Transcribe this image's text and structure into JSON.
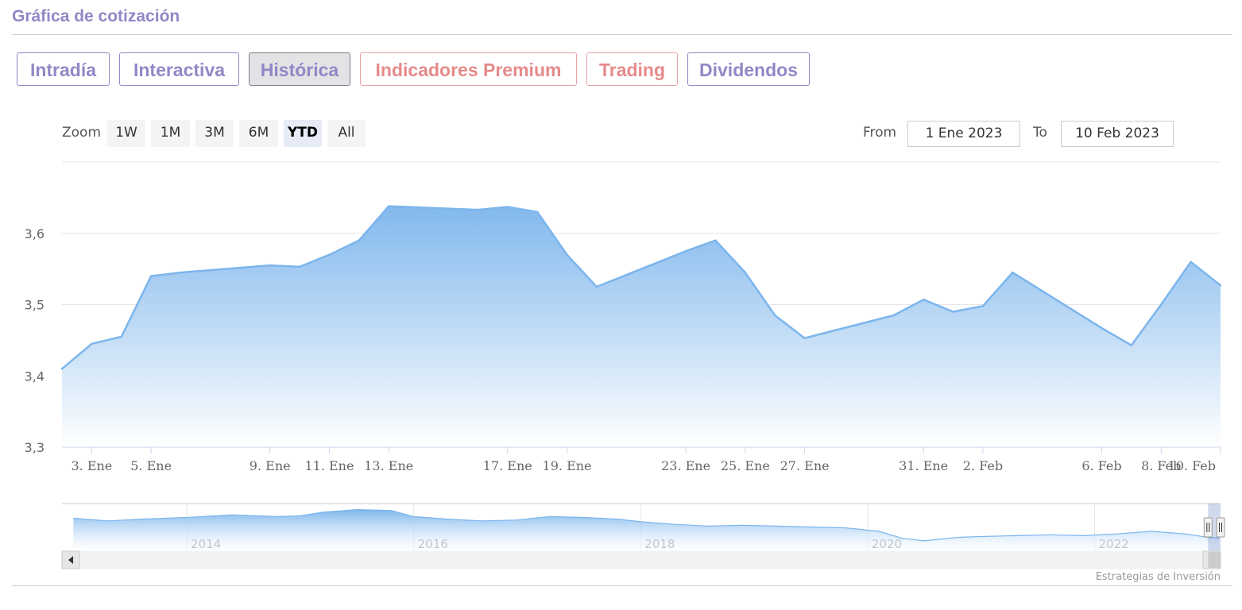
{
  "header": {
    "title": "Gráfica de cotización"
  },
  "tabs": [
    {
      "label": "Intradía"
    },
    {
      "label": "Interactiva"
    },
    {
      "label": "Histórica"
    },
    {
      "label": "Indicadores Premium"
    },
    {
      "label": "Trading"
    },
    {
      "label": "Dividendos"
    }
  ],
  "range_selector": {
    "zoom_label": "Zoom",
    "buttons": [
      "1W",
      "1M",
      "3M",
      "6M",
      "YTD",
      "All"
    ],
    "selected": "YTD",
    "from_label": "From",
    "from_value": "1 Ene 2023",
    "to_label": "To",
    "to_value": "10 Feb 2023"
  },
  "colors": {
    "accent": "#9088c6",
    "premium": "#e58a8a",
    "series_line": "#7cb5ec",
    "area_top": "#7cb5ec",
    "area_bottom": "#ffffff"
  },
  "chart_data": {
    "type": "area",
    "credits": "Estrategias de Inversión",
    "ylim": [
      3.3,
      3.7
    ],
    "y_ticks": [
      "3,3",
      "3,4",
      "3,5",
      "3,6"
    ],
    "x_tick_labels": [
      "3. Ene",
      "5. Ene",
      "9. Ene",
      "11. Ene",
      "13. Ene",
      "17. Ene",
      "19. Ene",
      "23. Ene",
      "25. Ene",
      "27. Ene",
      "31. Ene",
      "2. Feb",
      "6. Feb",
      "8. Feb",
      "10. Feb"
    ],
    "x_tick_dates": [
      "2023-01-03",
      "2023-01-05",
      "2023-01-09",
      "2023-01-11",
      "2023-01-13",
      "2023-01-17",
      "2023-01-19",
      "2023-01-23",
      "2023-01-25",
      "2023-01-27",
      "2023-01-31",
      "2023-02-02",
      "2023-02-06",
      "2023-02-08",
      "2023-02-10"
    ],
    "xlim": [
      "2023-01-02",
      "2023-02-10"
    ],
    "grid": true,
    "series": [
      {
        "x": [
          "2023-01-02",
          "2023-01-03",
          "2023-01-04",
          "2023-01-05",
          "2023-01-06",
          "2023-01-09",
          "2023-01-10",
          "2023-01-11",
          "2023-01-12",
          "2023-01-13",
          "2023-01-16",
          "2023-01-17",
          "2023-01-18",
          "2023-01-19",
          "2023-01-20",
          "2023-01-23",
          "2023-01-24",
          "2023-01-25",
          "2023-01-26",
          "2023-01-27",
          "2023-01-30",
          "2023-01-31",
          "2023-02-01",
          "2023-02-02",
          "2023-02-03",
          "2023-02-06",
          "2023-02-07",
          "2023-02-08",
          "2023-02-09",
          "2023-02-10"
        ],
        "values": [
          3.41,
          3.445,
          3.455,
          3.54,
          3.545,
          3.555,
          3.553,
          3.57,
          3.59,
          3.638,
          3.633,
          3.637,
          3.63,
          3.57,
          3.525,
          3.575,
          3.59,
          3.545,
          3.485,
          3.453,
          3.485,
          3.507,
          3.49,
          3.498,
          3.545,
          3.467,
          3.443,
          3.5,
          3.56,
          3.527
        ]
      }
    ],
    "navigator": {
      "year_labels": [
        "2014",
        "2016",
        "2018",
        "2020",
        "2022"
      ],
      "year_starts": [
        2014,
        2016,
        2018,
        2020,
        2022
      ],
      "xlim": [
        2012.9,
        2023.11
      ],
      "ylim": [
        2.0,
        7.5
      ],
      "x": [
        2013.0,
        2013.3,
        2013.6,
        2014.0,
        2014.4,
        2014.8,
        2015.0,
        2015.2,
        2015.5,
        2015.8,
        2016.0,
        2016.3,
        2016.6,
        2016.9,
        2017.2,
        2017.5,
        2017.8,
        2018.0,
        2018.3,
        2018.6,
        2018.9,
        2019.2,
        2019.5,
        2019.8,
        2020.1,
        2020.3,
        2020.5,
        2020.8,
        2021.0,
        2021.3,
        2021.6,
        2021.9,
        2022.2,
        2022.5,
        2022.8,
        2023.0,
        2023.1
      ],
      "values": [
        5.8,
        5.5,
        5.7,
        5.9,
        6.2,
        6.0,
        6.1,
        6.5,
        6.8,
        6.7,
        6.0,
        5.7,
        5.5,
        5.6,
        6.0,
        5.9,
        5.7,
        5.4,
        5.1,
        4.9,
        5.0,
        4.9,
        4.8,
        4.7,
        4.3,
        3.5,
        3.2,
        3.6,
        3.7,
        3.8,
        3.9,
        3.8,
        4.0,
        4.3,
        4.0,
        3.6,
        3.5
      ]
    }
  }
}
